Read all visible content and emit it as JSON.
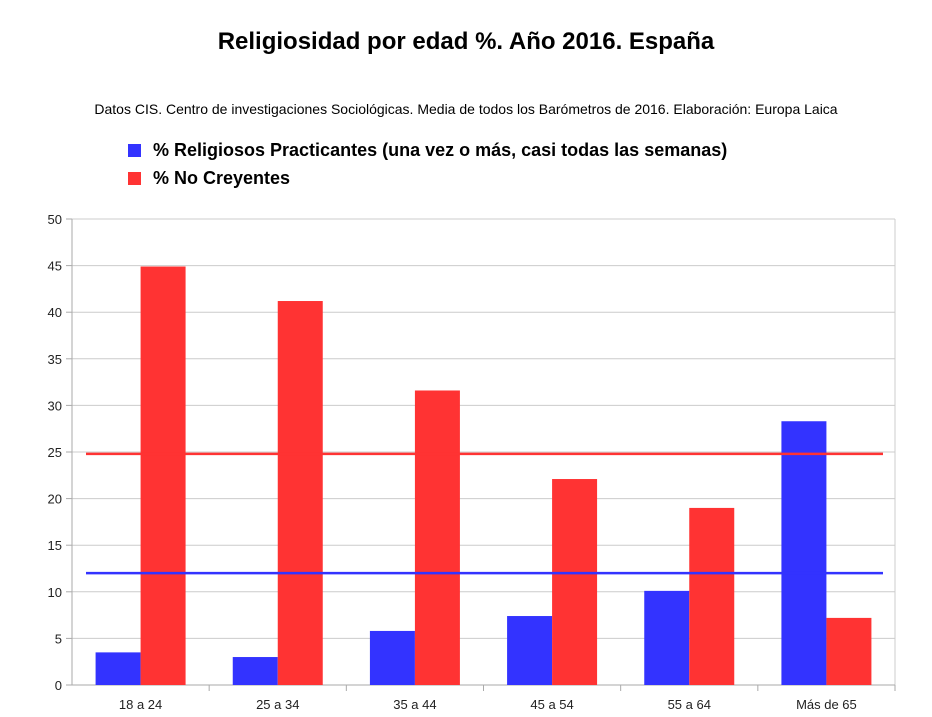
{
  "colors": {
    "series1": "#3333ff",
    "series2": "#ff3333",
    "grid": "#cccccc",
    "axis": "#aaaaaa"
  },
  "chart_data": {
    "type": "bar",
    "title": "Religiosidad por edad %. Año 2016. España",
    "subtitle": "Datos CIS. Centro de investigaciones Sociológicas. Media de todos los Barómetros de 2016. Elaboración: Europa Laica",
    "categories": [
      "18 a 24",
      "25 a 34",
      "35 a 44",
      "45 a 54",
      "55 a 64",
      "Más de 65"
    ],
    "series": [
      {
        "name": "% Religiosos Practicantes (una vez o más, casi todas las semanas)",
        "values": [
          3.5,
          3.0,
          5.8,
          7.4,
          10.1,
          28.3
        ]
      },
      {
        "name": "% No Creyentes",
        "values": [
          44.9,
          41.2,
          31.6,
          22.1,
          19.0,
          7.2
        ]
      }
    ],
    "reference_lines": [
      {
        "series": 1,
        "value": 24.8
      },
      {
        "series": 0,
        "value": 12.0
      }
    ],
    "ylim": [
      0,
      50
    ],
    "yticks": [
      "0",
      "5",
      "10",
      "15",
      "20",
      "25",
      "30",
      "35",
      "40",
      "45",
      "50"
    ],
    "grid": true,
    "legend_position": "top-left"
  }
}
